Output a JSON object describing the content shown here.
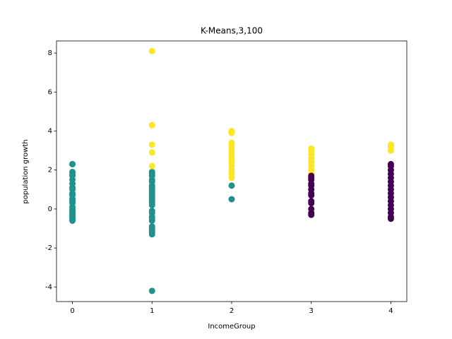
{
  "chart_data": {
    "type": "scatter",
    "title": "K-Means,3,100",
    "x_label": "IncomeGroup",
    "y_label": "population growth",
    "xlim": [
      -0.2,
      4.2
    ],
    "ylim": [
      -4.75,
      8.62
    ],
    "xticks": [
      0,
      1,
      2,
      3,
      4
    ],
    "yticks": [
      -4,
      -2,
      0,
      2,
      4,
      6,
      8
    ],
    "grid": false,
    "series": [
      {
        "color": "#21918c",
        "x": [
          0,
          0,
          0,
          0,
          0,
          0,
          0,
          0,
          0,
          0,
          0,
          0,
          0,
          0,
          0,
          0,
          0,
          0,
          0,
          0,
          0,
          0,
          1,
          1,
          1,
          1,
          1,
          1,
          1,
          1,
          1,
          1,
          1,
          1,
          1,
          1,
          1,
          1,
          1,
          1,
          1,
          1,
          1,
          1,
          1,
          1,
          1,
          1,
          1,
          2,
          2
        ],
        "values": [
          2.3,
          2.3,
          1.9,
          1.8,
          1.7,
          1.5,
          1.3,
          1.1,
          1.0,
          0.8,
          0.7,
          0.5,
          0.4,
          0.3,
          0.1,
          0.0,
          -0.1,
          -0.2,
          -0.3,
          -0.4,
          -0.5,
          -0.6,
          1.9,
          1.8,
          1.7,
          1.5,
          1.4,
          1.2,
          1.1,
          1.0,
          0.9,
          0.8,
          0.7,
          0.6,
          0.5,
          0.4,
          0.3,
          0.2,
          -0.1,
          -0.2,
          -0.4,
          -0.5,
          -0.6,
          -0.9,
          -1.0,
          -1.1,
          -1.2,
          -1.3,
          -4.2,
          1.2,
          0.5
        ]
      },
      {
        "color": "#fde725",
        "x": [
          1,
          1,
          1,
          1,
          1,
          2,
          2,
          2,
          2,
          2,
          2,
          2,
          2,
          2,
          2,
          2,
          2,
          2,
          2,
          3,
          3,
          3,
          3,
          3,
          3,
          3,
          3,
          4,
          4,
          4
        ],
        "values": [
          8.1,
          4.3,
          3.3,
          2.9,
          2.2,
          4.0,
          3.9,
          3.4,
          3.2,
          3.0,
          2.9,
          2.8,
          2.6,
          2.5,
          2.4,
          2.2,
          2.0,
          1.8,
          1.6,
          3.1,
          3.0,
          2.8,
          2.6,
          2.4,
          2.2,
          2.0,
          1.8,
          3.3,
          3.2,
          3.0
        ]
      },
      {
        "color": "#440154",
        "x": [
          3,
          3,
          3,
          3,
          3,
          3,
          3,
          3,
          3,
          3,
          3,
          3,
          3,
          4,
          4,
          4,
          4,
          4,
          4,
          4,
          4,
          4,
          4,
          4,
          4,
          4,
          4,
          4,
          4
        ],
        "values": [
          1.7,
          1.6,
          1.5,
          1.3,
          1.2,
          1.0,
          0.8,
          0.7,
          0.4,
          0.3,
          0.0,
          -0.2,
          -0.3,
          2.3,
          2.2,
          2.0,
          1.8,
          1.6,
          1.4,
          1.2,
          1.0,
          0.8,
          0.6,
          0.4,
          0.2,
          0.0,
          -0.2,
          -0.4,
          -0.5
        ]
      }
    ]
  }
}
